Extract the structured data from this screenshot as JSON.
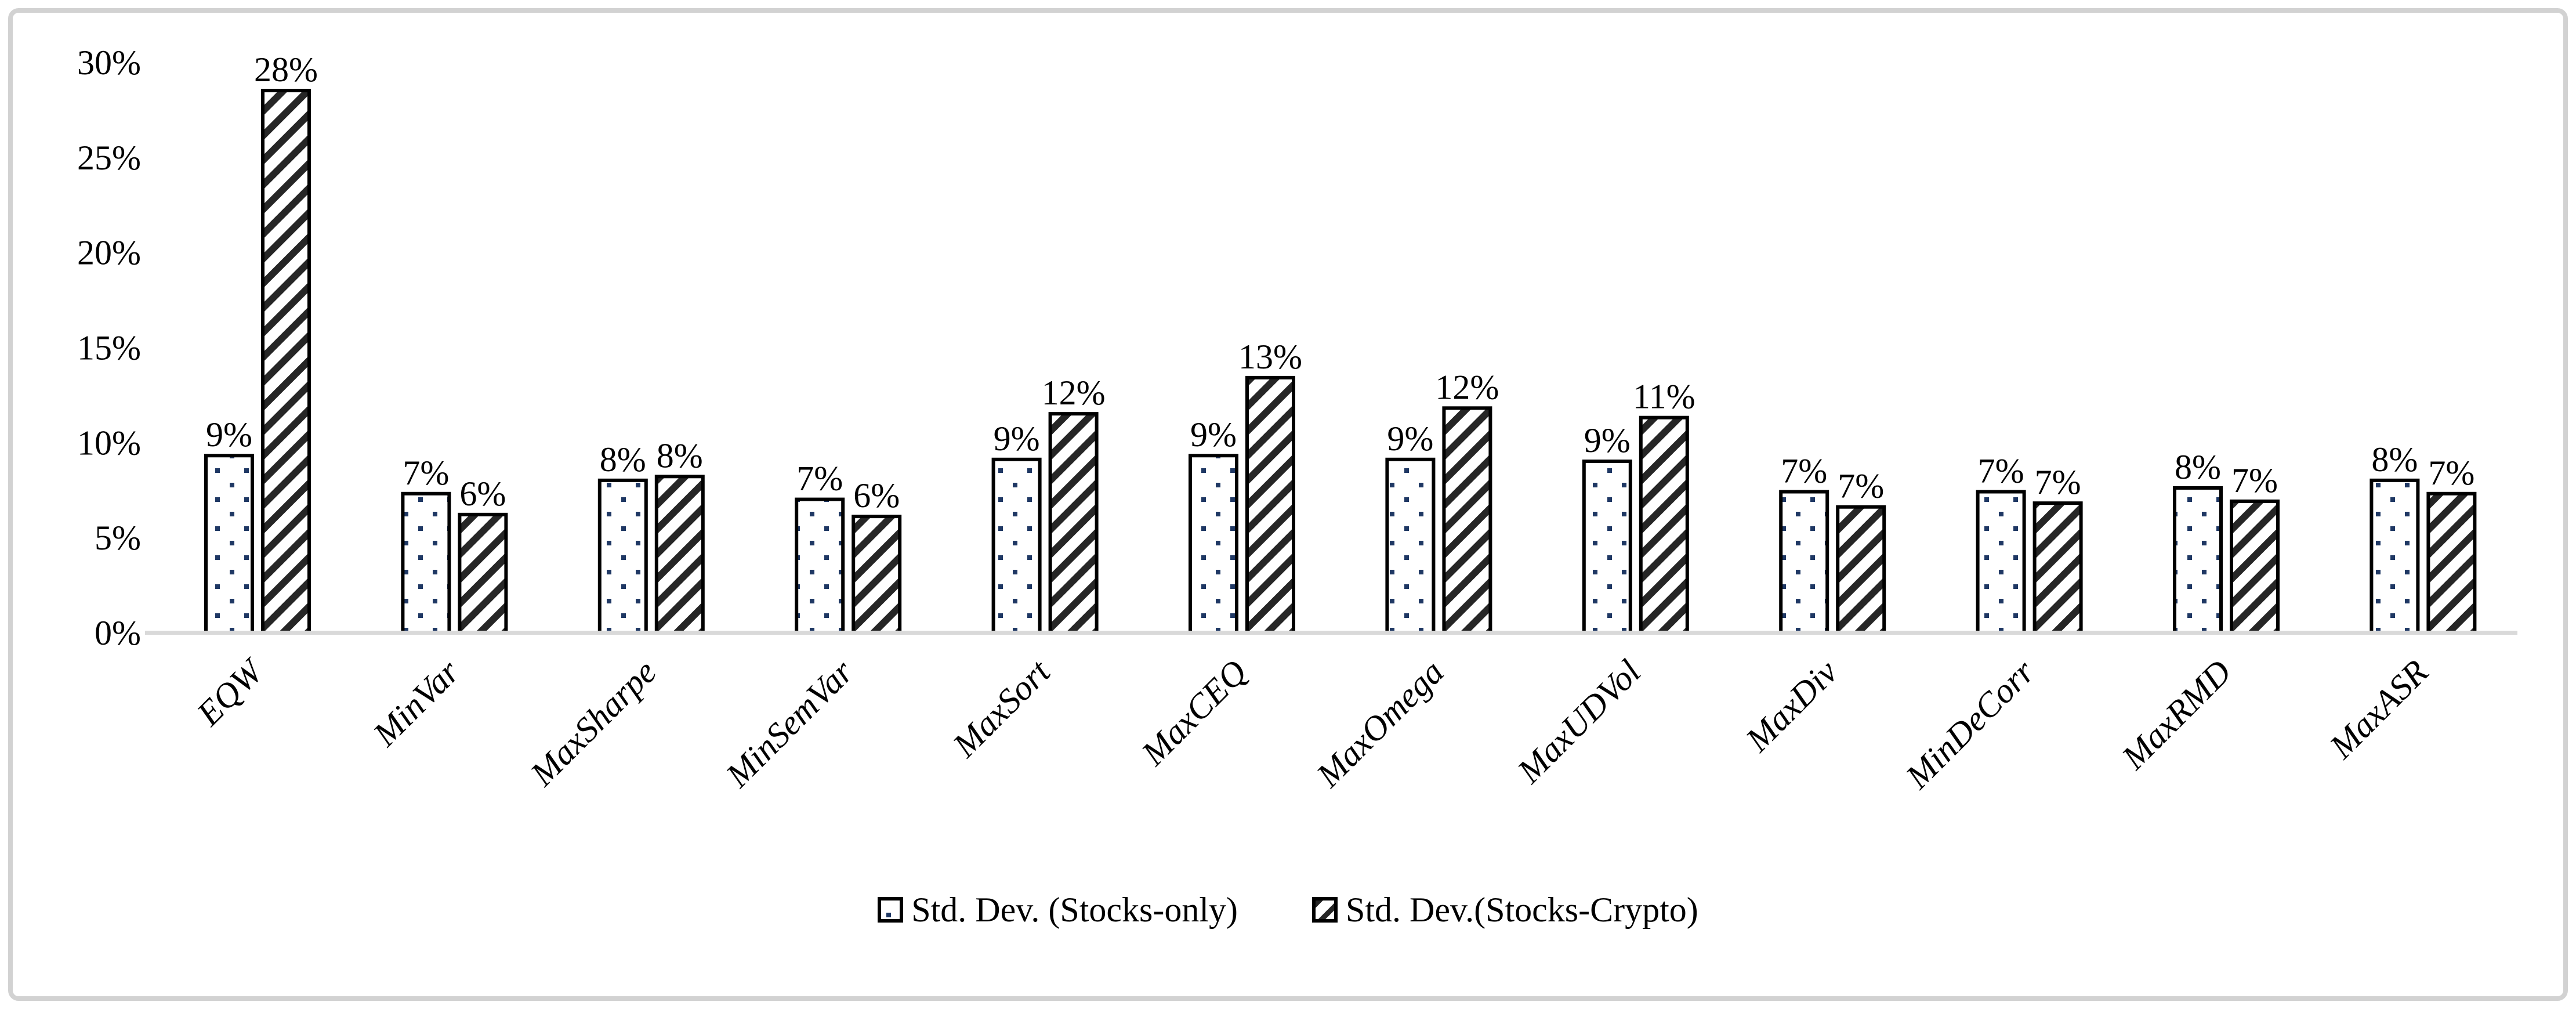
{
  "chart_data": {
    "type": "bar",
    "title": "",
    "xlabel": "",
    "ylabel": "",
    "categories": [
      "EQW",
      "MinVar",
      "MaxSharpe",
      "MinSemVar",
      "MaxSort",
      "MaxCEQ",
      "MaxOmega",
      "MaxUDVol",
      "MaxDiv",
      "MinDeCorr",
      "MaxRMD",
      "MaxASR"
    ],
    "series": [
      {
        "name": "Std. Dev. (Stocks-only)",
        "pattern": "dots",
        "values": [
          9.3,
          7.3,
          8.0,
          7.0,
          9.1,
          9.3,
          9.1,
          9.0,
          7.4,
          7.4,
          7.6,
          8.0
        ],
        "labels": [
          "9%",
          "7%",
          "8%",
          "7%",
          "9%",
          "9%",
          "9%",
          "9%",
          "7%",
          "7%",
          "8%",
          "8%"
        ]
      },
      {
        "name": "Std. Dev.(Stocks-Crypto)",
        "pattern": "diagonal-stripes",
        "values": [
          28.5,
          6.2,
          8.2,
          6.1,
          11.5,
          13.4,
          11.8,
          11.3,
          6.6,
          6.8,
          6.9,
          7.3
        ],
        "labels": [
          "28%",
          "6%",
          "8%",
          "6%",
          "12%",
          "13%",
          "12%",
          "11%",
          "7%",
          "7%",
          "7%",
          "7%"
        ]
      }
    ],
    "y_axis": {
      "min": 0,
      "max": 30,
      "step": 5,
      "tick_labels": [
        "0%",
        "5%",
        "10%",
        "15%",
        "20%",
        "25%",
        "30%"
      ]
    },
    "grid": false,
    "legend_position": "bottom"
  },
  "legend": {
    "items": [
      {
        "label": "Std. Dev. (Stocks-only)",
        "marker": "dotted-square"
      },
      {
        "label": "Std. Dev.(Stocks-Crypto)",
        "marker": "striped-square"
      }
    ]
  },
  "colors": {
    "background": "#ffffff",
    "frame_border": "#d2d2d2",
    "axis_baseline": "#d9d9d9",
    "bar_border": "#000000",
    "dot_fill": "#1f3864",
    "stripe_fill": "#262626",
    "text": "#000000"
  }
}
